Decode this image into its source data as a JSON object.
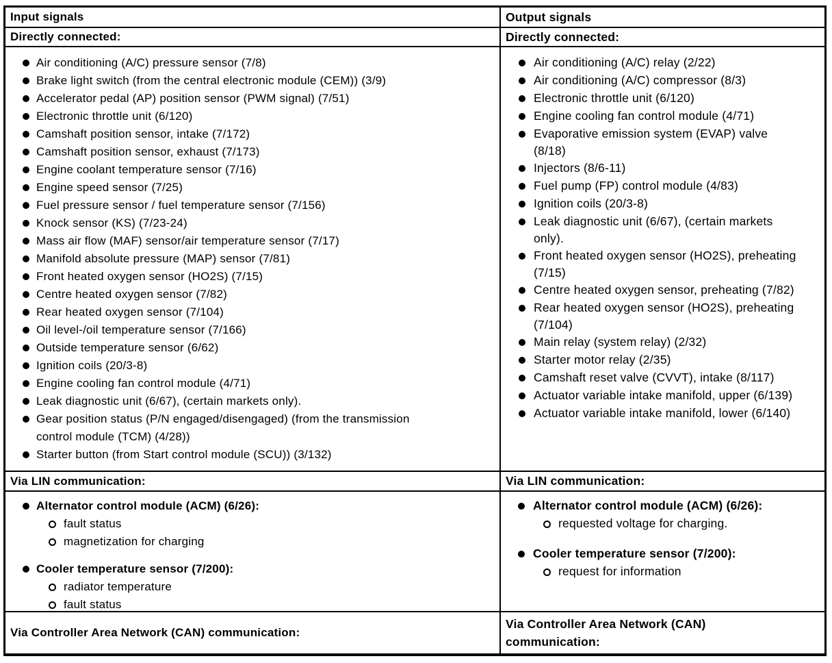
{
  "input": {
    "header": "Input signals",
    "directly_connected_title": "Directly connected:",
    "direct_items": [
      "Air conditioning (A/C) pressure sensor (7/8)",
      "Brake light switch (from the central electronic module (CEM)) (3/9)",
      "Accelerator pedal (AP) position sensor (PWM signal) (7/51)",
      "Electronic throttle unit (6/120)",
      "Camshaft position sensor, intake (7/172)",
      "Camshaft position sensor, exhaust (7/173)",
      "Engine coolant temperature sensor (7/16)",
      "Engine speed sensor (7/25)",
      "Fuel pressure sensor / fuel temperature sensor (7/156)",
      "Knock sensor (KS) (7/23-24)",
      "Mass air flow (MAF) sensor/air temperature sensor (7/17)",
      "Manifold absolute pressure (MAP) sensor (7/81)",
      "Front heated oxygen sensor (HO2S) (7/15)",
      "Centre heated oxygen sensor (7/82)",
      "Rear heated oxygen sensor (7/104)",
      "Oil level-/oil temperature sensor (7/166)",
      "Outside temperature sensor (6/62)",
      "Ignition coils (20/3-8)",
      "Engine cooling fan control module (4/71)",
      "Leak diagnostic unit (6/67), (certain markets only).",
      "Gear position status (P/N engaged/disengaged) (from the transmission control module (TCM) (4/28))",
      "Starter button (from Start control module (SCU)) (3/132)"
    ],
    "lin_title": "Via LIN communication:",
    "lin_groups": [
      {
        "label": "Alternator control module (ACM) (6/26):",
        "subitems": [
          "fault status",
          "magnetization for charging"
        ]
      },
      {
        "label": "Cooler temperature sensor (7/200):",
        "subitems": [
          "radiator temperature",
          "fault status"
        ]
      }
    ],
    "can_title": "Via Controller Area Network (CAN) communication:"
  },
  "output": {
    "header": "Output signals",
    "directly_connected_title": "Directly connected:",
    "direct_items": [
      "Air conditioning (A/C) relay (2/22)",
      "Air conditioning (A/C) compressor (8/3)",
      "Electronic throttle unit (6/120)",
      "Engine cooling fan control module (4/71)",
      "Evaporative emission system (EVAP) valve (8/18)",
      "Injectors (8/6-11)",
      "Fuel pump (FP) control module (4/83)",
      "Ignition coils (20/3-8)",
      "Leak diagnostic unit (6/67), (certain markets only).",
      "Front heated oxygen sensor (HO2S), preheating (7/15)",
      "Centre heated oxygen sensor, preheating (7/82)",
      "Rear heated oxygen sensor (HO2S), preheating (7/104)",
      "Main relay (system relay) (2/32)",
      "Starter motor relay (2/35)",
      "Camshaft reset valve (CVVT), intake (8/117)",
      "Actuator variable intake manifold, upper (6/139)",
      "Actuator variable intake manifold, lower (6/140)"
    ],
    "lin_title": "Via LIN communication:",
    "lin_groups": [
      {
        "label": "Alternator control module (ACM) (6/26):",
        "subitems": [
          "requested voltage for charging."
        ]
      },
      {
        "label": "Cooler temperature sensor (7/200):",
        "subitems": [
          "request for information"
        ]
      }
    ],
    "can_title": "Via Controller Area Network (CAN) communication:"
  }
}
